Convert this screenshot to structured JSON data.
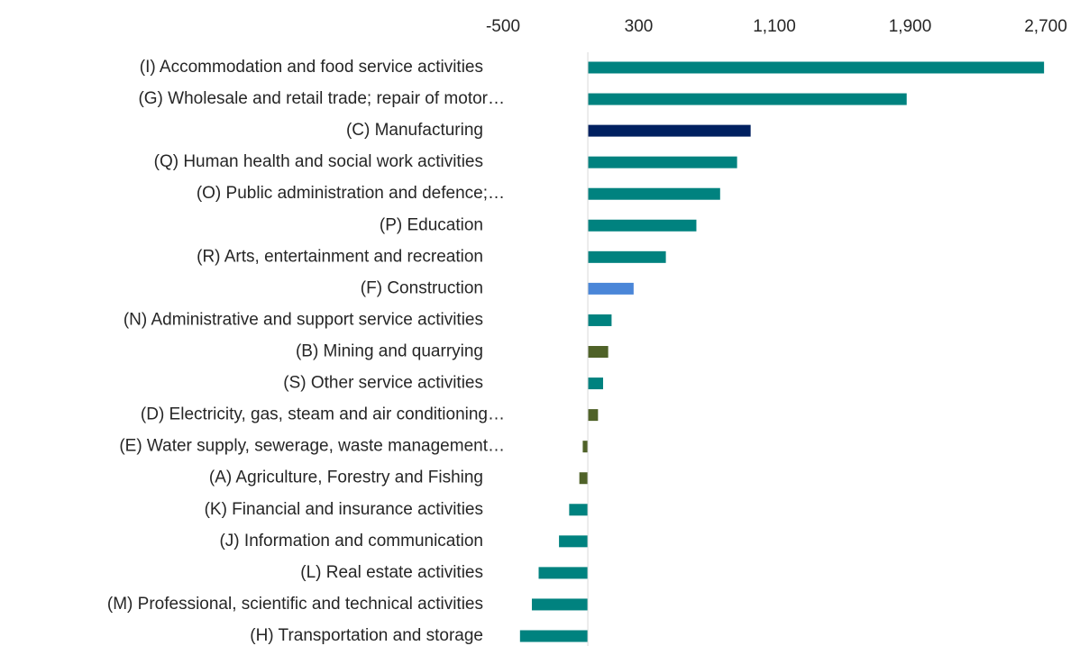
{
  "chart_data": {
    "type": "barh",
    "categories": [
      "(I) Accommodation and food service activities",
      "(G) Wholesale and retail trade; repair of motor…",
      "(C) Manufacturing",
      "(Q) Human health and social work activities",
      "(O) Public administration and defence;…",
      "(P) Education",
      "(R) Arts, entertainment and recreation",
      "(F) Construction",
      "(N) Administrative and support service activities",
      "(B) Mining and quarrying",
      "(S) Other service activities",
      "(D) Electricity, gas, steam and air conditioning…",
      "(E) Water supply, sewerage, waste management…",
      "(A) Agriculture, Forestry and Fishing",
      "(K) Financial and insurance activities",
      "(J) Information and communication",
      "(L) Real estate activities",
      "(M) Professional, scientific and technical activities",
      "(H) Transportation and storage"
    ],
    "values": [
      2690,
      1880,
      960,
      880,
      780,
      640,
      460,
      270,
      140,
      120,
      90,
      60,
      -30,
      -50,
      -110,
      -170,
      -290,
      -330,
      -400
    ],
    "colors": [
      "#00827f",
      "#00827f",
      "#002060",
      "#00827f",
      "#00827f",
      "#00827f",
      "#00827f",
      "#4a86d8",
      "#00827f",
      "#4f6228",
      "#00827f",
      "#4f6228",
      "#4f6228",
      "#4f6228",
      "#00827f",
      "#00827f",
      "#00827f",
      "#00827f",
      "#00827f"
    ],
    "xlim": [
      -500,
      2700
    ],
    "xticks": [
      -500,
      300,
      {
        "value": 1100,
        "label": "1,100"
      },
      {
        "value": 1900,
        "label": "1,900"
      },
      {
        "value": 2700,
        "label": "2,700"
      }
    ],
    "grid": false
  }
}
